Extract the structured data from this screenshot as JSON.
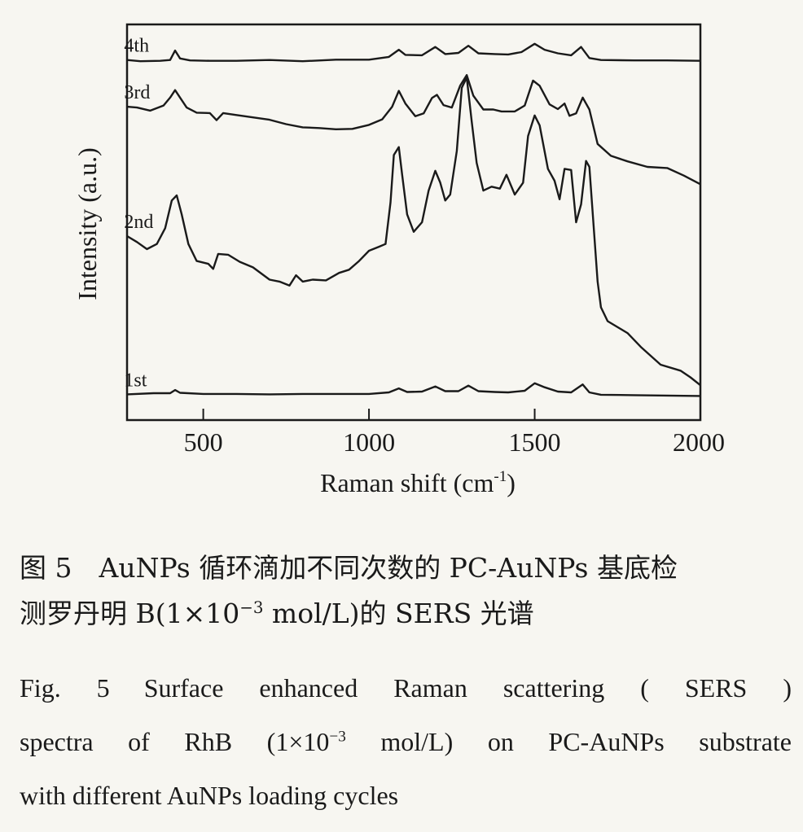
{
  "chart_data": {
    "type": "line",
    "xlabel": "Raman shift (cm",
    "xlabel_sup": "-1",
    "xlabel_close": ")",
    "ylabel": "Intensity (a.u.)",
    "xlim": [
      270,
      2000
    ],
    "ylim": [
      0,
      100
    ],
    "x_ticks": [
      500,
      1000,
      1500,
      2000
    ],
    "x_tick_labels": [
      "500",
      "1000",
      "1500",
      "2000"
    ],
    "grid": false,
    "series": [
      {
        "name": "4th",
        "label_x": 330,
        "points": [
          [
            270,
            91
          ],
          [
            310,
            90.7
          ],
          [
            370,
            90.8
          ],
          [
            400,
            91
          ],
          [
            415,
            93.4
          ],
          [
            430,
            91.4
          ],
          [
            460,
            90.9
          ],
          [
            520,
            90.8
          ],
          [
            600,
            90.8
          ],
          [
            700,
            91
          ],
          [
            800,
            90.7
          ],
          [
            900,
            91.1
          ],
          [
            1000,
            91.1
          ],
          [
            1060,
            91.8
          ],
          [
            1090,
            93.6
          ],
          [
            1110,
            92.3
          ],
          [
            1160,
            92.2
          ],
          [
            1200,
            94.3
          ],
          [
            1230,
            92.5
          ],
          [
            1270,
            92.8
          ],
          [
            1300,
            94.6
          ],
          [
            1330,
            92.7
          ],
          [
            1380,
            92.5
          ],
          [
            1420,
            92.4
          ],
          [
            1460,
            93
          ],
          [
            1500,
            95.1
          ],
          [
            1530,
            93.6
          ],
          [
            1570,
            92.7
          ],
          [
            1610,
            92.2
          ],
          [
            1640,
            94.3
          ],
          [
            1665,
            91.5
          ],
          [
            1700,
            91
          ],
          [
            1800,
            90.9
          ],
          [
            1900,
            90.9
          ],
          [
            2000,
            90.8
          ]
        ]
      },
      {
        "name": "3rd",
        "label_x": 330,
        "points": [
          [
            270,
            79.2
          ],
          [
            300,
            79
          ],
          [
            340,
            78.2
          ],
          [
            380,
            79.5
          ],
          [
            400,
            81.5
          ],
          [
            415,
            83.4
          ],
          [
            430,
            81.5
          ],
          [
            450,
            79
          ],
          [
            480,
            77.7
          ],
          [
            520,
            77.6
          ],
          [
            540,
            75.8
          ],
          [
            560,
            77.6
          ],
          [
            600,
            77.1
          ],
          [
            650,
            76.5
          ],
          [
            700,
            75.9
          ],
          [
            750,
            74.8
          ],
          [
            800,
            74
          ],
          [
            850,
            73.8
          ],
          [
            900,
            73.5
          ],
          [
            950,
            73.6
          ],
          [
            1000,
            74.6
          ],
          [
            1040,
            76
          ],
          [
            1070,
            79.2
          ],
          [
            1090,
            83.2
          ],
          [
            1110,
            80
          ],
          [
            1140,
            76.8
          ],
          [
            1165,
            77.5
          ],
          [
            1190,
            81.4
          ],
          [
            1205,
            82.2
          ],
          [
            1225,
            79.6
          ],
          [
            1250,
            79
          ],
          [
            1275,
            84.5
          ],
          [
            1295,
            87.2
          ],
          [
            1315,
            82
          ],
          [
            1345,
            78.5
          ],
          [
            1375,
            78.5
          ],
          [
            1400,
            78
          ],
          [
            1440,
            78
          ],
          [
            1470,
            79.5
          ],
          [
            1495,
            85.8
          ],
          [
            1515,
            84.5
          ],
          [
            1545,
            79.8
          ],
          [
            1570,
            78.6
          ],
          [
            1590,
            80
          ],
          [
            1605,
            76.9
          ],
          [
            1625,
            77.5
          ],
          [
            1645,
            81.5
          ],
          [
            1665,
            78.5
          ],
          [
            1690,
            69.8
          ],
          [
            1730,
            66.8
          ],
          [
            1780,
            65.4
          ],
          [
            1840,
            64
          ],
          [
            1900,
            63.7
          ],
          [
            1950,
            61.8
          ],
          [
            2000,
            59.6
          ]
        ]
      },
      {
        "name": "2nd",
        "label_x": 330,
        "points": [
          [
            270,
            46.5
          ],
          [
            300,
            45
          ],
          [
            330,
            43.2
          ],
          [
            360,
            44.5
          ],
          [
            385,
            48.5
          ],
          [
            405,
            55.5
          ],
          [
            420,
            56.8
          ],
          [
            435,
            52
          ],
          [
            455,
            44.5
          ],
          [
            480,
            40.2
          ],
          [
            515,
            39.5
          ],
          [
            530,
            38.2
          ],
          [
            545,
            42
          ],
          [
            575,
            41.8
          ],
          [
            610,
            40
          ],
          [
            650,
            38.6
          ],
          [
            700,
            35.5
          ],
          [
            730,
            35
          ],
          [
            760,
            34
          ],
          [
            780,
            36.6
          ],
          [
            800,
            35
          ],
          [
            830,
            35.5
          ],
          [
            870,
            35.3
          ],
          [
            910,
            37.2
          ],
          [
            940,
            38
          ],
          [
            970,
            40.2
          ],
          [
            1000,
            42.8
          ],
          [
            1030,
            43.8
          ],
          [
            1050,
            44.5
          ],
          [
            1065,
            55
          ],
          [
            1075,
            67
          ],
          [
            1090,
            69
          ],
          [
            1100,
            62
          ],
          [
            1115,
            52
          ],
          [
            1135,
            47.6
          ],
          [
            1160,
            50
          ],
          [
            1180,
            58
          ],
          [
            1200,
            63
          ],
          [
            1215,
            60
          ],
          [
            1230,
            55.5
          ],
          [
            1245,
            57
          ],
          [
            1265,
            68
          ],
          [
            1280,
            84
          ],
          [
            1295,
            86.6
          ],
          [
            1310,
            75.5
          ],
          [
            1325,
            65
          ],
          [
            1345,
            58
          ],
          [
            1370,
            59
          ],
          [
            1395,
            58.5
          ],
          [
            1415,
            62
          ],
          [
            1440,
            57
          ],
          [
            1465,
            60
          ],
          [
            1480,
            71.8
          ],
          [
            1500,
            77
          ],
          [
            1515,
            74.5
          ],
          [
            1540,
            63.5
          ],
          [
            1560,
            60.5
          ],
          [
            1575,
            55.8
          ],
          [
            1590,
            63.5
          ],
          [
            1610,
            63.2
          ],
          [
            1625,
            50
          ],
          [
            1640,
            54.5
          ],
          [
            1655,
            65.5
          ],
          [
            1665,
            64
          ],
          [
            1690,
            35
          ],
          [
            1700,
            28.5
          ],
          [
            1720,
            25
          ],
          [
            1780,
            22
          ],
          [
            1820,
            18.5
          ],
          [
            1880,
            14
          ],
          [
            1940,
            12.5
          ],
          [
            1970,
            10.8
          ],
          [
            2000,
            8.8
          ]
        ]
      },
      {
        "name": "1st",
        "label_x": 330,
        "points": [
          [
            270,
            6.5
          ],
          [
            350,
            6.8
          ],
          [
            400,
            6.8
          ],
          [
            415,
            7.6
          ],
          [
            430,
            6.9
          ],
          [
            500,
            6.6
          ],
          [
            600,
            6.6
          ],
          [
            700,
            6.5
          ],
          [
            800,
            6.6
          ],
          [
            900,
            6.6
          ],
          [
            1000,
            6.6
          ],
          [
            1060,
            7
          ],
          [
            1090,
            8
          ],
          [
            1115,
            7.1
          ],
          [
            1160,
            7.2
          ],
          [
            1200,
            8.5
          ],
          [
            1230,
            7.3
          ],
          [
            1270,
            7.3
          ],
          [
            1300,
            8.7
          ],
          [
            1330,
            7.3
          ],
          [
            1380,
            7.1
          ],
          [
            1420,
            7
          ],
          [
            1470,
            7.4
          ],
          [
            1500,
            9.3
          ],
          [
            1530,
            8.3
          ],
          [
            1570,
            7.2
          ],
          [
            1610,
            7
          ],
          [
            1645,
            9
          ],
          [
            1665,
            7
          ],
          [
            1700,
            6.4
          ],
          [
            1800,
            6.3
          ],
          [
            1900,
            6.2
          ],
          [
            2000,
            6.1
          ]
        ]
      }
    ]
  },
  "caption": {
    "cn_line1": "图 5　AuNPs 循环滴加不同次数的 PC-AuNPs 基底检",
    "cn_line2_pre": "测罗丹明 B(1×10",
    "cn_line2_sup": "−3",
    "cn_line2_post": " mol/L)的 SERS 光谱",
    "en_label": "Fig. 5",
    "en_line1": "Surface enhanced Raman scattering ( SERS )",
    "en_line2_pre": "spectra of RhB (1×10",
    "en_line2_sup": "−3",
    "en_line2_post": " mol/L) on PC-AuNPs substrate",
    "en_line3": "with different AuNPs loading cycles"
  }
}
